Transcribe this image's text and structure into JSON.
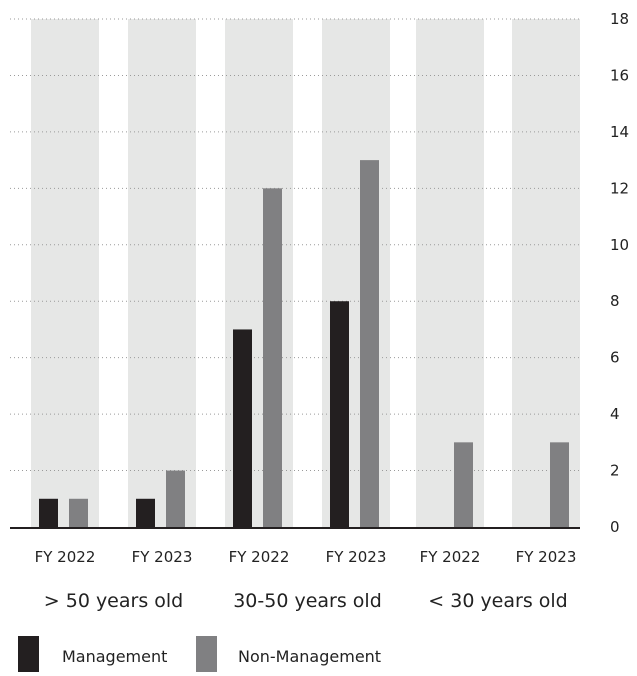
{
  "chart_data": {
    "type": "bar",
    "title": "",
    "xlabel": "",
    "ylabel": "",
    "ylim": [
      0,
      18
    ],
    "yticks": [
      0,
      2,
      4,
      6,
      8,
      10,
      12,
      14,
      16,
      18
    ],
    "y_axis_side": "right",
    "grid": "horizontal dotted",
    "groups": [
      {
        "label": "> 50 years old",
        "years": [
          "FY 2022",
          "FY 2023"
        ]
      },
      {
        "label": "30-50 years old",
        "years": [
          "FY 2022",
          "FY 2023"
        ]
      },
      {
        "label": "< 30 years old",
        "years": [
          "FY 2022",
          "FY 2023"
        ]
      }
    ],
    "categories": [
      "FY 2022",
      "FY 2023",
      "FY 2022",
      "FY 2023",
      "FY 2022",
      "FY 2023"
    ],
    "series": [
      {
        "name": "Management",
        "color": "#231f20",
        "values": [
          1,
          1,
          7,
          8,
          0,
          0
        ]
      },
      {
        "name": "Non-Management",
        "color": "#808082",
        "values": [
          1,
          2,
          12,
          13,
          3,
          3
        ]
      }
    ],
    "legend": {
      "placement": "bottom-left",
      "items": [
        "Management",
        "Non-Management"
      ]
    },
    "colors": {
      "panel_background": "#e6e7e6",
      "grid": "#9a9a9a",
      "axis": "#231f20"
    }
  }
}
